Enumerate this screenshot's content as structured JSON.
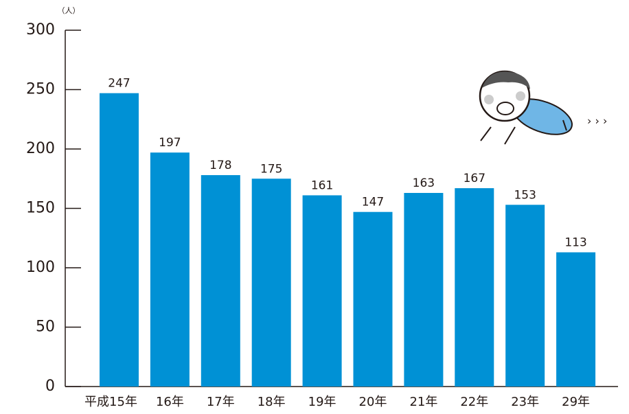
{
  "chart_data": {
    "type": "bar",
    "unit_label": "（人）",
    "categories": [
      "平成15年",
      "16年",
      "17年",
      "18年",
      "19年",
      "20年",
      "21年",
      "22年",
      "23年",
      "29年"
    ],
    "values": [
      247,
      197,
      178,
      175,
      161,
      147,
      163,
      167,
      153,
      113
    ],
    "color": "#0091d5",
    "ylim": [
      0,
      300
    ],
    "yticks": [
      0,
      50,
      100,
      150,
      200,
      250,
      300
    ],
    "grid": false
  }
}
